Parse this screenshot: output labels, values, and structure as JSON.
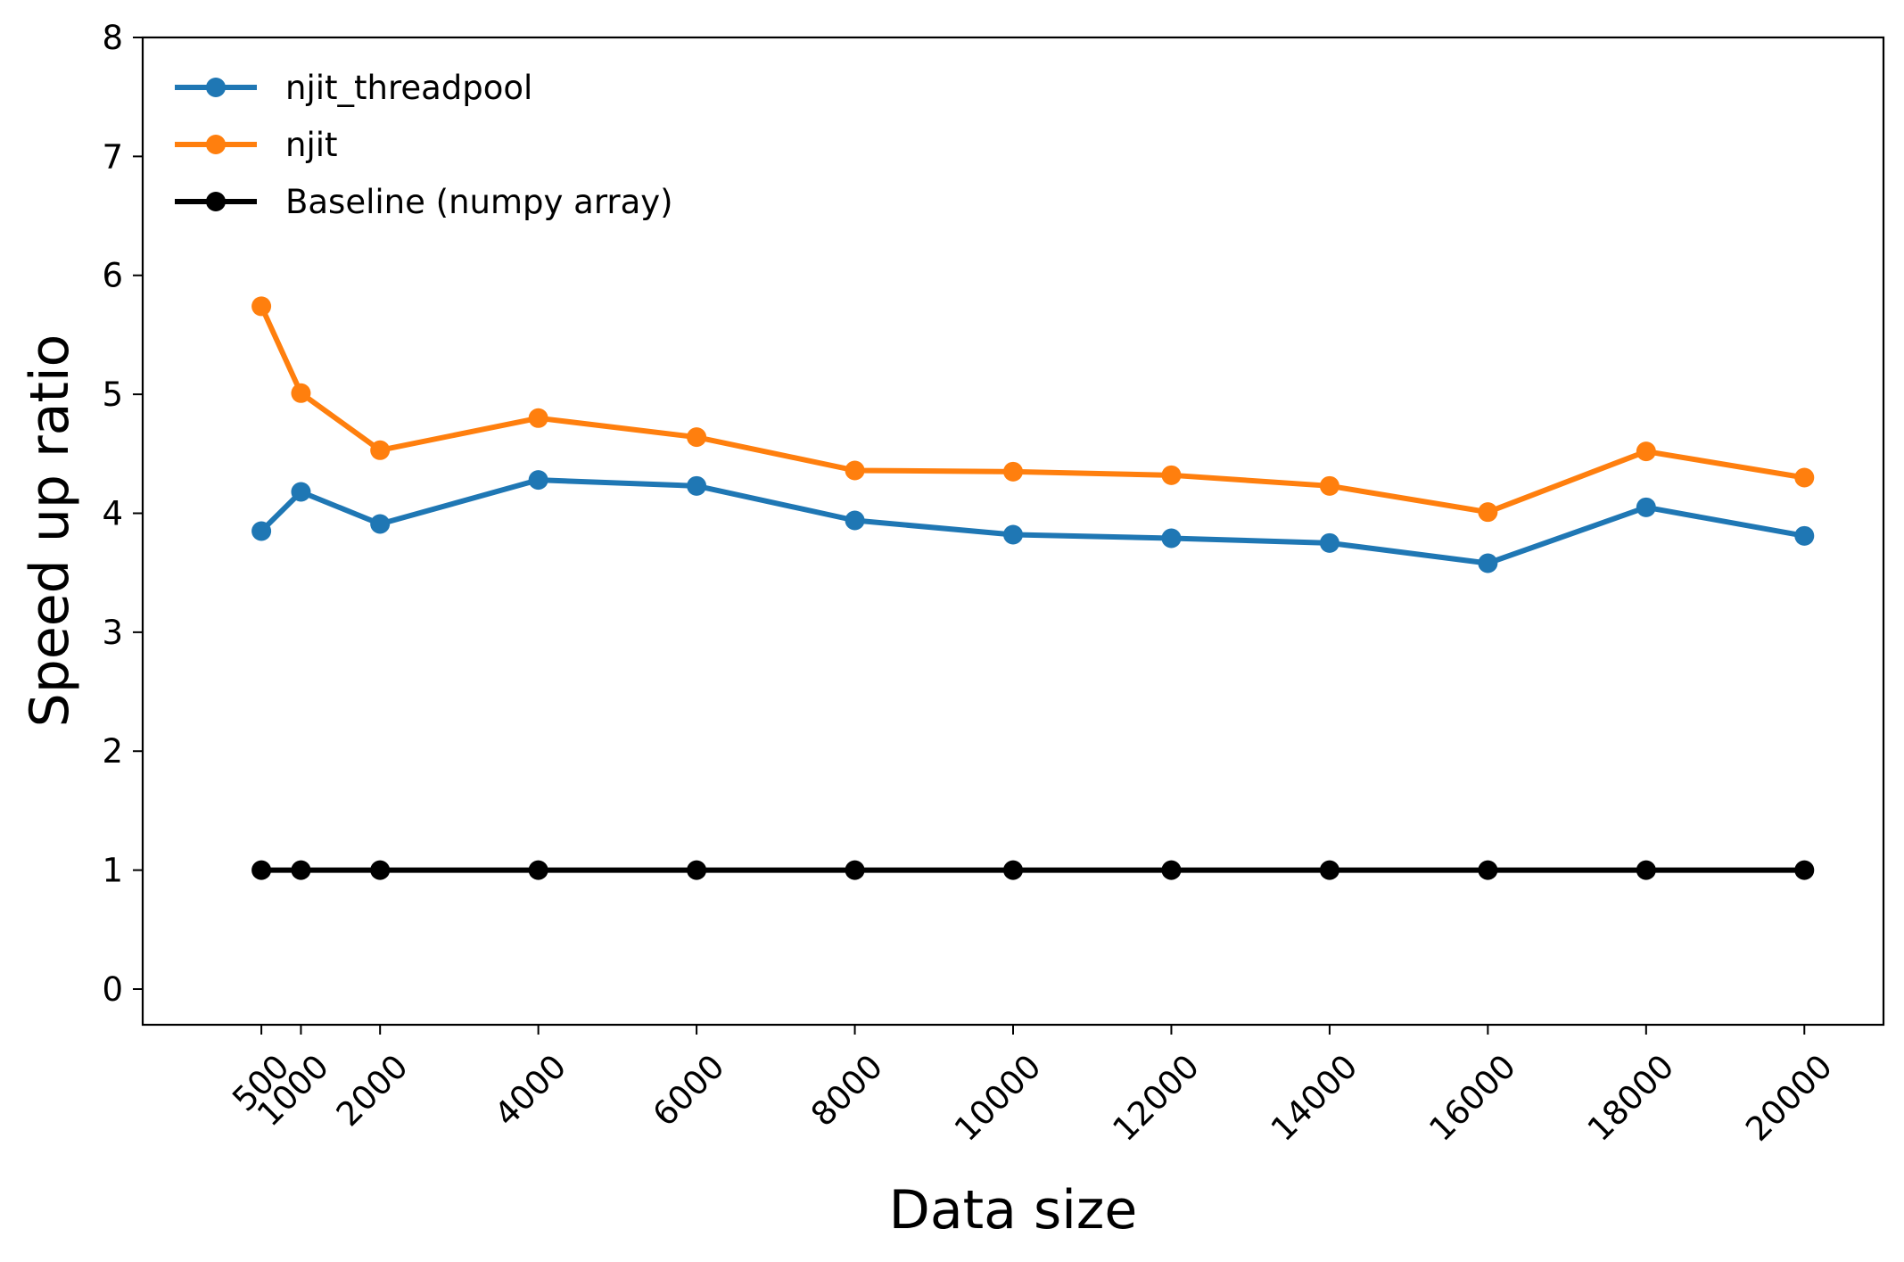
{
  "chart_data": {
    "type": "line",
    "title": "",
    "xlabel": "Data size",
    "ylabel": "Speed up ratio",
    "x": [
      500,
      1000,
      2000,
      4000,
      6000,
      8000,
      10000,
      12000,
      14000,
      16000,
      18000,
      20000
    ],
    "xticks": [
      500,
      1000,
      2000,
      4000,
      6000,
      8000,
      10000,
      12000,
      14000,
      16000,
      18000,
      20000
    ],
    "yticks": [
      0,
      1,
      2,
      3,
      4,
      5,
      6,
      7,
      8
    ],
    "xlim": [
      -1000,
      21000
    ],
    "ylim": [
      -0.3,
      8
    ],
    "grid": false,
    "legend_position": "top-left",
    "series": [
      {
        "name": "njit_threadpool",
        "color": "#1f77b4",
        "values": [
          3.85,
          4.18,
          3.91,
          4.28,
          4.23,
          3.94,
          3.82,
          3.79,
          3.75,
          3.58,
          4.05,
          3.81
        ]
      },
      {
        "name": "njit",
        "color": "#ff7f0e",
        "values": [
          5.74,
          5.01,
          4.53,
          4.8,
          4.64,
          4.36,
          4.35,
          4.32,
          4.23,
          4.01,
          4.52,
          4.3
        ]
      },
      {
        "name": "Baseline (numpy array)",
        "color": "#000000",
        "values": [
          1,
          1,
          1,
          1,
          1,
          1,
          1,
          1,
          1,
          1,
          1,
          1
        ]
      }
    ]
  }
}
